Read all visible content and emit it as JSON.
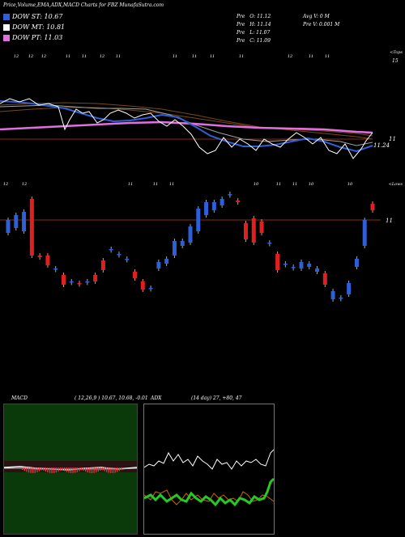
{
  "header": {
    "title": "Price,Volume,EMA,ADX,MACD Charts for FBZ MunafaSutra.com",
    "stats_left": [
      {
        "label": "Pre",
        "key": "O",
        "value": "11.12"
      },
      {
        "label": "Pre",
        "key": "H",
        "value": "11.14"
      },
      {
        "label": "Pre",
        "key": "L",
        "value": "11.07"
      },
      {
        "label": "Pre",
        "key": "C",
        "value": "11.09"
      }
    ],
    "stats_right": [
      {
        "text": "Avg V: 0  M"
      },
      {
        "text": "Pre   V: 0.001 M"
      }
    ]
  },
  "legend": [
    {
      "label": "DOW ST: 10.67",
      "color": "#2e5fd8"
    },
    {
      "label": "DOW MT: 10.81",
      "color": "#ffffff"
    },
    {
      "label": "DOW PT: 11.03",
      "color": "#e070e0"
    }
  ],
  "top_right_label": "<Tops",
  "bottom_right_label": "<Lows",
  "top_right_value": "15",
  "ema_labels": {
    "left": "11.24",
    "right": "11"
  },
  "price_right_label": "11",
  "top_tick_labels": [
    "12",
    "12",
    "12",
    "11",
    "11",
    "12",
    "11",
    "11",
    "11",
    "11",
    "11",
    "12",
    "11",
    "11"
  ],
  "bottom_tick_labels": [
    "12",
    "12",
    "11",
    "11",
    "11",
    "10",
    "11",
    "11",
    "10",
    "10"
  ],
  "macd": {
    "label": "MACD",
    "params": "( 12,26,9 ) 10.67, 10.68, -0.01"
  },
  "adx": {
    "label": "ADX",
    "params": "(14  day) 27, +80, 47"
  },
  "chart_data": {
    "type": "candlestick",
    "symbol": "FBZ",
    "price_reference": 11,
    "moving_averages": [
      {
        "name": "DOW ST",
        "value": 10.67,
        "color": "#2e5fd8"
      },
      {
        "name": "DOW MT",
        "value": 10.81,
        "color": "#ffffff"
      },
      {
        "name": "DOW PT",
        "value": 11.03,
        "color": "#e070e0"
      }
    ],
    "candles": [
      {
        "o": 11.0,
        "c": 10.92,
        "dir": "up"
      },
      {
        "o": 10.95,
        "c": 11.03,
        "dir": "up"
      },
      {
        "o": 11.05,
        "c": 10.93,
        "dir": "up"
      },
      {
        "o": 11.13,
        "c": 10.78,
        "dir": "down"
      },
      {
        "o": 10.78,
        "c": 10.77,
        "dir": "down"
      },
      {
        "o": 10.78,
        "c": 10.72,
        "dir": "down"
      },
      {
        "o": 10.7,
        "c": 10.7,
        "dir": "up"
      },
      {
        "o": 10.66,
        "c": 10.6,
        "dir": "down"
      },
      {
        "o": 10.62,
        "c": 10.62,
        "dir": "up"
      },
      {
        "o": 10.61,
        "c": 10.61,
        "dir": "down"
      },
      {
        "o": 10.62,
        "c": 10.62,
        "dir": "up"
      },
      {
        "o": 10.66,
        "c": 10.62,
        "dir": "down"
      },
      {
        "o": 10.69,
        "c": 10.75,
        "dir": "down"
      },
      {
        "o": 10.82,
        "c": 10.82,
        "dir": "up"
      },
      {
        "o": 10.79,
        "c": 10.79,
        "dir": "up"
      },
      {
        "o": 10.76,
        "c": 10.76,
        "dir": "up"
      },
      {
        "o": 10.68,
        "c": 10.64,
        "dir": "down"
      },
      {
        "o": 10.62,
        "c": 10.57,
        "dir": "down"
      },
      {
        "o": 10.58,
        "c": 10.58,
        "dir": "up"
      },
      {
        "o": 10.74,
        "c": 10.7,
        "dir": "up"
      },
      {
        "o": 10.76,
        "c": 10.73,
        "dir": "up"
      },
      {
        "o": 10.87,
        "c": 10.78,
        "dir": "up"
      },
      {
        "o": 10.87,
        "c": 10.84,
        "dir": "up"
      },
      {
        "o": 10.96,
        "c": 10.86,
        "dir": "up"
      },
      {
        "o": 11.07,
        "c": 10.93,
        "dir": "up"
      },
      {
        "o": 11.11,
        "c": 11.03,
        "dir": "up"
      },
      {
        "o": 11.11,
        "c": 11.06,
        "dir": "up"
      },
      {
        "o": 11.13,
        "c": 11.09,
        "dir": "up"
      },
      {
        "o": 11.16,
        "c": 11.16,
        "dir": "up"
      },
      {
        "o": 11.12,
        "c": 11.11,
        "dir": "down"
      },
      {
        "o": 10.98,
        "c": 10.88,
        "dir": "down"
      },
      {
        "o": 11.01,
        "c": 10.86,
        "dir": "down"
      },
      {
        "o": 10.99,
        "c": 10.92,
        "dir": "down"
      },
      {
        "o": 10.86,
        "c": 10.86,
        "dir": "up"
      },
      {
        "o": 10.79,
        "c": 10.69,
        "dir": "down"
      },
      {
        "o": 10.73,
        "c": 10.73,
        "dir": "up"
      },
      {
        "o": 10.71,
        "c": 10.71,
        "dir": "up"
      },
      {
        "o": 10.74,
        "c": 10.7,
        "dir": "up"
      },
      {
        "o": 10.73,
        "c": 10.71,
        "dir": "up"
      },
      {
        "o": 10.7,
        "c": 10.68,
        "dir": "up"
      },
      {
        "o": 10.67,
        "c": 10.6,
        "dir": "down"
      },
      {
        "o": 10.56,
        "c": 10.51,
        "dir": "up"
      },
      {
        "o": 10.52,
        "c": 10.52,
        "dir": "up"
      },
      {
        "o": 10.54,
        "c": 10.61,
        "dir": "up"
      },
      {
        "o": 10.76,
        "c": 10.71,
        "dir": "up"
      },
      {
        "o": 11.0,
        "c": 10.84,
        "dir": "up"
      },
      {
        "o": 11.1,
        "c": 11.06,
        "dir": "down"
      }
    ],
    "macd": {
      "fast": 12,
      "slow": 26,
      "signal": 9,
      "macd": 10.67,
      "signal_value": 10.68,
      "histogram": -0.01
    },
    "adx": {
      "period": 14,
      "adx": 27,
      "plus_di": 80,
      "minus_di": 47
    }
  }
}
